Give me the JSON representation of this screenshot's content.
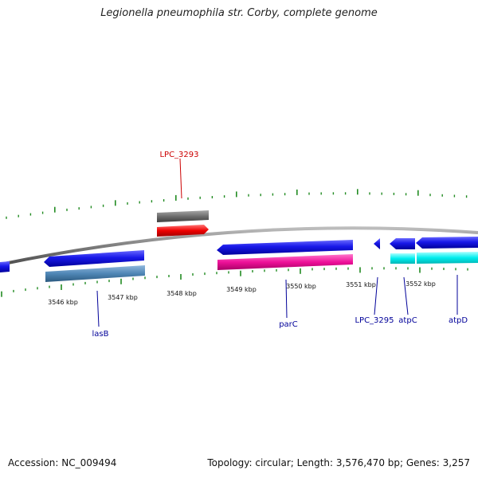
{
  "title": "Legionella pneumophila str. Corby, complete genome",
  "footer": {
    "accession": "Accession: NC_009494",
    "summary": "Topology: circular; Length: 3,576,470 bp; Genes: 3,257"
  },
  "colors": {
    "backbone": "#8a8a8a",
    "tick": "#228b22",
    "cds": "#1010e0",
    "gene_steel": "#4f86b5",
    "gene_pink": "#ee1199",
    "gene_cyan": "#00e8e8",
    "gene_red": "#ee0000",
    "gene_gray": "#6e6e6e",
    "label_blue": "#000099",
    "label_red": "#cc0000"
  },
  "axis": {
    "tick_labels": [
      "3546 kbp",
      "3547 kbp",
      "3548 kbp",
      "3549 kbp",
      "3550 kbp",
      "3551 kbp",
      "3552 kbp"
    ]
  },
  "gene_labels": [
    {
      "text": "LPC_3293",
      "color": "label_red"
    },
    {
      "text": "lasB",
      "color": "label_blue"
    },
    {
      "text": "parC",
      "color": "label_blue"
    },
    {
      "text": "LPC_3295",
      "color": "label_blue"
    },
    {
      "text": "atpC",
      "color": "label_blue"
    },
    {
      "text": "atpD",
      "color": "label_blue"
    }
  ]
}
